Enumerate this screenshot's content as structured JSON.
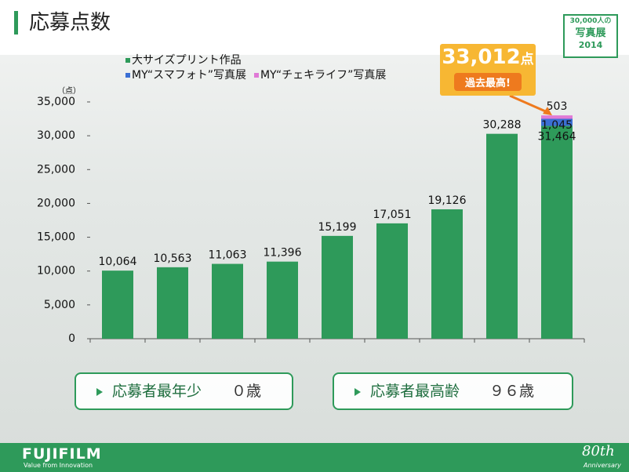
{
  "header": {
    "title": "応募点数"
  },
  "logo": {
    "line1": "30,000人の",
    "line2": "写真展",
    "year": "2014"
  },
  "chart_data": {
    "type": "stacked-bar",
    "y_unit_label": "（点）",
    "categories": [
      null,
      null,
      null,
      null,
      null,
      null,
      null,
      null,
      null
    ],
    "series": [
      {
        "name": "大サイズプリント作品",
        "color": "#2e9a5a",
        "values": [
          10064,
          10563,
          11063,
          11396,
          15199,
          17051,
          19126,
          30288,
          31464
        ],
        "value_labels": [
          "10,064",
          "10,563",
          "11,063",
          "11,396",
          "15,199",
          "17,051",
          "19,126",
          "30,288",
          "31,464"
        ]
      },
      {
        "name": "MY“スマフォト”写真展",
        "color": "#3b6fd4",
        "values": [
          null,
          null,
          null,
          null,
          null,
          null,
          null,
          null,
          1045
        ],
        "value_labels": [
          null,
          null,
          null,
          null,
          null,
          null,
          null,
          null,
          "1,045"
        ]
      },
      {
        "name": "MY“チェキライフ”写真展",
        "color": "#e07ad6",
        "values": [
          null,
          null,
          null,
          null,
          null,
          null,
          null,
          null,
          503
        ],
        "value_labels": [
          null,
          null,
          null,
          null,
          null,
          null,
          null,
          null,
          "503"
        ]
      }
    ],
    "ylim": [
      0,
      35000
    ],
    "yticks": [
      0,
      {
        "value": 5000,
        "label": "5,000"
      },
      {
        "value": 10000,
        "label": "10,000"
      },
      {
        "value": 15000,
        "label": "15,000"
      },
      {
        "value": 20000,
        "label": "20,000"
      },
      {
        "value": 25000,
        "label": "25,000"
      },
      {
        "value": 30000,
        "label": "30,000"
      },
      {
        "value": 35000,
        "label": "35,000"
      }
    ],
    "grid": false,
    "legend": "top-left",
    "callout": {
      "value": 33012,
      "label": "33,012",
      "unit": "点",
      "note": "過去最高!"
    }
  },
  "info_boxes": [
    {
      "label": "応募者最年少",
      "value": "０歳"
    },
    {
      "label": "応募者最高齢",
      "value": "９６歳"
    }
  ],
  "footer": {
    "brand": "FUJIFILM",
    "tagline": "Value from Innovation",
    "anniversary": "80th",
    "anniversary_sub": "Anniversary"
  }
}
